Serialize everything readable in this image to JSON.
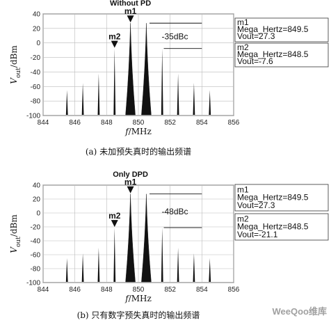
{
  "chart_data": [
    {
      "type": "line",
      "title": "Without PD",
      "xlabel": "f/MHz",
      "ylabel": "V_out/dBm",
      "xlim": [
        844,
        856
      ],
      "ylim": [
        -100,
        40
      ],
      "xticks": [
        "844",
        "846",
        "848",
        "850",
        "852",
        "854",
        "856"
      ],
      "yticks": [
        "40",
        "20",
        "0",
        "-20",
        "-40",
        "-60",
        "-80",
        "-100"
      ],
      "grid": true,
      "peaks": [
        {
          "x": 845.5,
          "y": -65
        },
        {
          "x": 846.5,
          "y": -55
        },
        {
          "x": 847.5,
          "y": -42
        },
        {
          "x": 848.5,
          "y": -7.6
        },
        {
          "x": 849.5,
          "y": 27.3
        },
        {
          "x": 850.5,
          "y": 27.3
        },
        {
          "x": 851.5,
          "y": -7.6
        },
        {
          "x": 852.5,
          "y": -42
        },
        {
          "x": 853.5,
          "y": -55
        },
        {
          "x": 854.5,
          "y": -65
        }
      ],
      "annotation": "-35dBc",
      "markers": [
        {
          "name": "m1",
          "freq_label": "Mega_Hertz=849.5",
          "vout_label": "Vout=27.3",
          "x": 849.5,
          "y": 27.3
        },
        {
          "name": "m2",
          "freq_label": "Mega_Hertz=848.5",
          "vout_label": "Vout=-7.6",
          "x": 848.5,
          "y": -7.6
        }
      ],
      "caption": "(a) 未加预失真时的输出频谱"
    },
    {
      "type": "line",
      "title": "Only DPD",
      "xlabel": "f/MHz",
      "ylabel": "V_out/dBm",
      "xlim": [
        844,
        856
      ],
      "ylim": [
        -100,
        40
      ],
      "xticks": [
        "844",
        "846",
        "848",
        "850",
        "852",
        "854",
        "856"
      ],
      "yticks": [
        "40",
        "20",
        "0",
        "-20",
        "-40",
        "-60",
        "-80",
        "-100"
      ],
      "grid": true,
      "peaks": [
        {
          "x": 845.5,
          "y": -65
        },
        {
          "x": 846.5,
          "y": -58
        },
        {
          "x": 847.5,
          "y": -50
        },
        {
          "x": 848.5,
          "y": -21.1
        },
        {
          "x": 849.5,
          "y": 27.3
        },
        {
          "x": 850.5,
          "y": 27.3
        },
        {
          "x": 851.5,
          "y": -21.1
        },
        {
          "x": 852.5,
          "y": -50
        },
        {
          "x": 853.5,
          "y": -58
        },
        {
          "x": 854.5,
          "y": -65
        }
      ],
      "annotation": "-48dBc",
      "markers": [
        {
          "name": "m1",
          "freq_label": "Mega_Hertz=849.5",
          "vout_label": "Vout=27.3",
          "x": 849.5,
          "y": 27.3
        },
        {
          "name": "m2",
          "freq_label": "Mega_Hertz=848.5",
          "vout_label": "Vout=-21.1",
          "x": 848.5,
          "y": -21.1
        }
      ],
      "caption": "(b) 只有数字预失真时的输出频谱"
    }
  ],
  "watermark": "WeeQoo维库"
}
